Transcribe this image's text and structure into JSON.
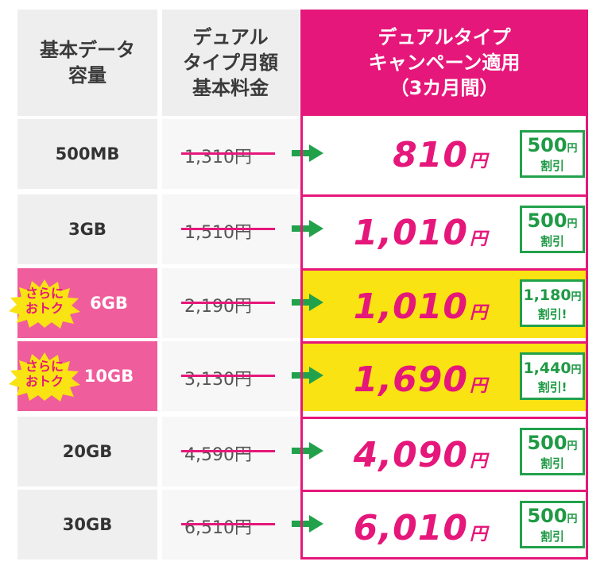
{
  "header": {
    "col1": [
      "基本データ",
      "容量"
    ],
    "col2": [
      "デュアル",
      "タイプ月額",
      "基本料金"
    ],
    "col3": [
      "デュアルタイプ",
      "キャンペーン適用",
      "（3カ月間）"
    ]
  },
  "rows": [
    {
      "capacity": "500MB",
      "old_price": "1,310円",
      "new_price": "810",
      "yen": "円",
      "discount": "500",
      "discount_unit": "円",
      "discount_label": "割引",
      "highlight": false
    },
    {
      "capacity": "3GB",
      "old_price": "1,510円",
      "new_price": "1,010",
      "yen": "円",
      "discount": "500",
      "discount_unit": "円",
      "discount_label": "割引",
      "highlight": false
    },
    {
      "capacity": "6GB",
      "old_price": "2,190円",
      "new_price": "1,010",
      "yen": "円",
      "discount": "1,180",
      "discount_unit": "円",
      "discount_label": "割引!",
      "highlight": true,
      "tag": [
        "さらに",
        "おトク"
      ]
    },
    {
      "capacity": "10GB",
      "old_price": "3,130円",
      "new_price": "1,690",
      "yen": "円",
      "discount": "1,440",
      "discount_unit": "円",
      "discount_label": "割引!",
      "highlight": true,
      "tag": [
        "さらに",
        "おトク"
      ]
    },
    {
      "capacity": "20GB",
      "old_price": "4,590円",
      "new_price": "4,090",
      "yen": "円",
      "discount": "500",
      "discount_unit": "円",
      "discount_label": "割引",
      "highlight": false
    },
    {
      "capacity": "30GB",
      "old_price": "6,510円",
      "new_price": "6,010",
      "yen": "円",
      "discount": "500",
      "discount_unit": "円",
      "discount_label": "割引",
      "highlight": false
    }
  ],
  "colors": {
    "pink": "#e6177a",
    "light_pink": "#ef5d9c",
    "green": "#22a14b",
    "yellow": "#f9e313",
    "gray": "#eeeeee"
  },
  "icons": {
    "arrow": "green-right-arrow-icon",
    "burst": "yellow-starburst-icon"
  }
}
